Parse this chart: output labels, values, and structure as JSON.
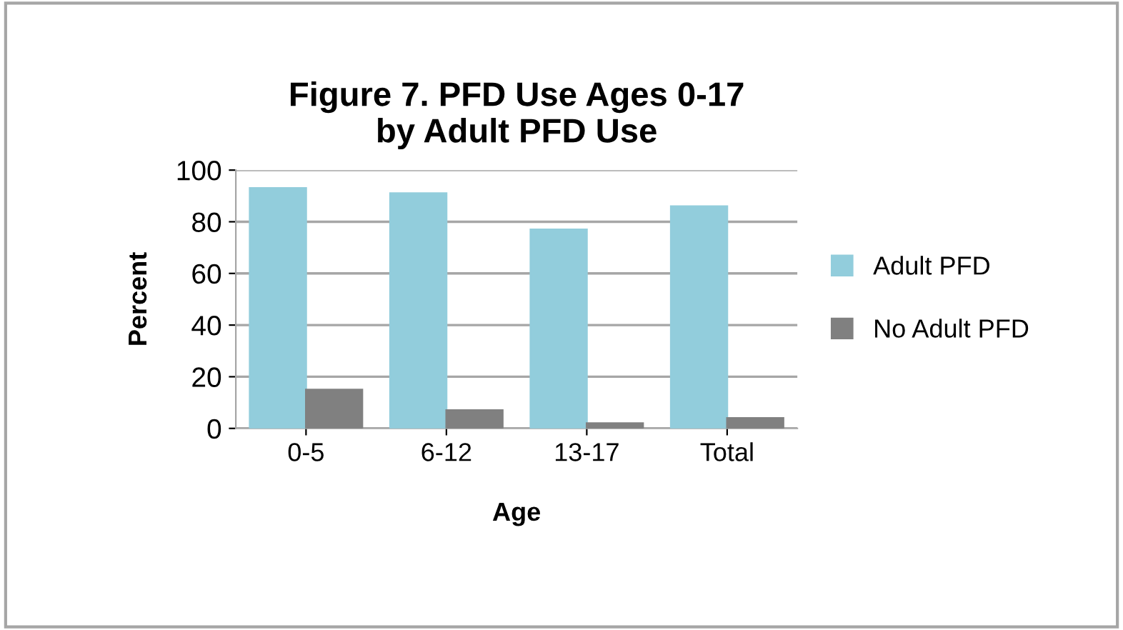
{
  "chart_data": {
    "type": "bar",
    "title": "Figure 7. PFD Use Ages 0-17\nby Adult PFD Use",
    "xlabel": "Age",
    "ylabel": "Percent",
    "categories": [
      "0-5",
      "6-12",
      "13-17",
      "Total"
    ],
    "series": [
      {
        "name": "Adult PFD",
        "color": "#92cddc",
        "values": [
          93,
          91,
          77,
          86
        ]
      },
      {
        "name": "No Adult PFD",
        "color": "#808080",
        "values": [
          15,
          7,
          2,
          4
        ]
      }
    ],
    "ylim": [
      0,
      100
    ],
    "yticks": [
      0,
      20,
      40,
      60,
      80,
      100
    ],
    "grid": "y",
    "legend": "right"
  }
}
